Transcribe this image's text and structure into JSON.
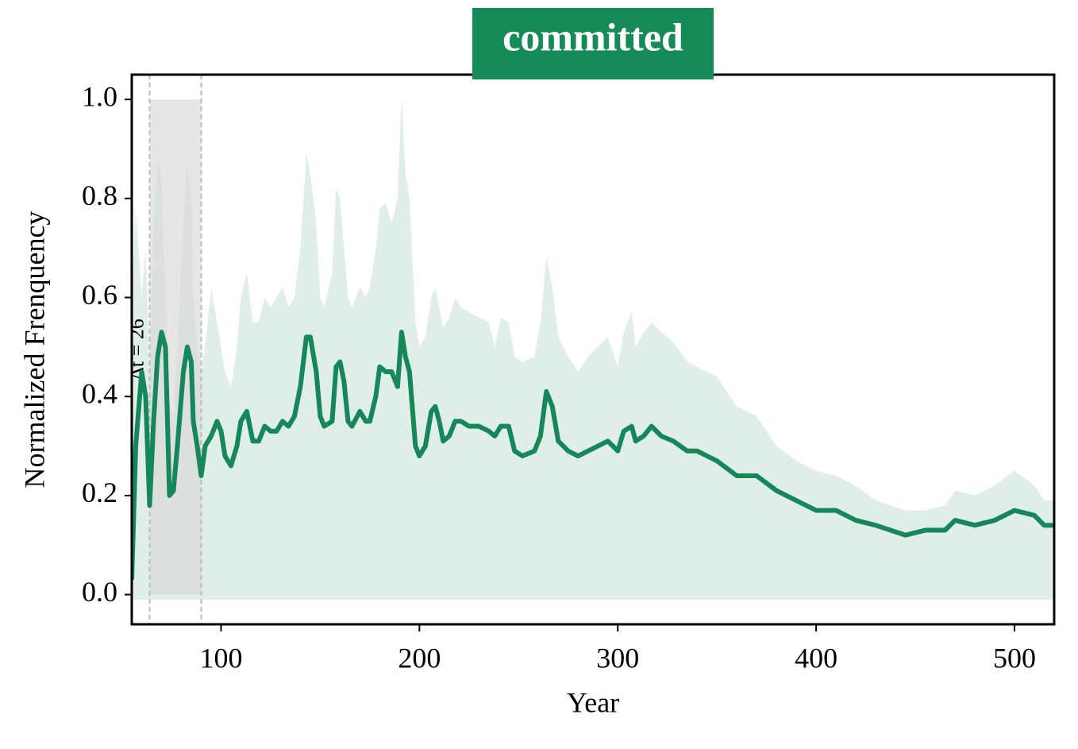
{
  "chart_data": {
    "type": "line",
    "title": "committed",
    "title_color": "#168a57",
    "xlabel": "Year",
    "ylabel": "Normalized Frenquency",
    "xlim": [
      55,
      520
    ],
    "ylim": [
      -0.06,
      1.05
    ],
    "xticks": [
      100,
      200,
      300,
      400,
      500
    ],
    "yticks": [
      {
        "value": 0,
        "label": "0.0"
      },
      {
        "value": 0.2,
        "label": "0.2"
      },
      {
        "value": 0.4,
        "label": "0.4"
      },
      {
        "value": 0.6,
        "label": "0.6"
      },
      {
        "value": 0.8,
        "label": "0.8"
      },
      {
        "value": 1,
        "label": "1.0"
      }
    ],
    "x": [
      55,
      57,
      60,
      62,
      64,
      66,
      68,
      70,
      72,
      74,
      76,
      78,
      81,
      83,
      85,
      86,
      88,
      90,
      92,
      95,
      98,
      100,
      102,
      105,
      108,
      110,
      113,
      116,
      119,
      122,
      125,
      128,
      131,
      134,
      137,
      140,
      143,
      145,
      148,
      150,
      152,
      156,
      158,
      160,
      162,
      164,
      166,
      170,
      173,
      175,
      178,
      180,
      183,
      186,
      189,
      191,
      193,
      195,
      198,
      200,
      203,
      206,
      208,
      210,
      212,
      215,
      218,
      221,
      225,
      230,
      235,
      238,
      241,
      245,
      248,
      252,
      258,
      261,
      264,
      267,
      270,
      275,
      280,
      285,
      290,
      295,
      300,
      303,
      307,
      309,
      313,
      317,
      322,
      328,
      335,
      340,
      350,
      360,
      370,
      380,
      390,
      400,
      410,
      420,
      430,
      445,
      455,
      465,
      470,
      480,
      490,
      500,
      510,
      515,
      520
    ],
    "series": [
      {
        "name": "committed",
        "color": "#15875a",
        "values": [
          0.03,
          0.3,
          0.45,
          0.4,
          0.18,
          0.35,
          0.48,
          0.53,
          0.5,
          0.2,
          0.21,
          0.3,
          0.45,
          0.5,
          0.47,
          0.35,
          0.3,
          0.24,
          0.3,
          0.32,
          0.35,
          0.33,
          0.28,
          0.26,
          0.3,
          0.35,
          0.37,
          0.31,
          0.31,
          0.34,
          0.33,
          0.33,
          0.35,
          0.34,
          0.36,
          0.42,
          0.52,
          0.52,
          0.45,
          0.36,
          0.34,
          0.35,
          0.46,
          0.47,
          0.43,
          0.35,
          0.34,
          0.37,
          0.35,
          0.35,
          0.4,
          0.46,
          0.45,
          0.45,
          0.42,
          0.53,
          0.48,
          0.45,
          0.3,
          0.28,
          0.3,
          0.37,
          0.38,
          0.35,
          0.31,
          0.32,
          0.35,
          0.35,
          0.34,
          0.34,
          0.33,
          0.32,
          0.34,
          0.34,
          0.29,
          0.28,
          0.29,
          0.32,
          0.41,
          0.38,
          0.31,
          0.29,
          0.28,
          0.29,
          0.3,
          0.31,
          0.29,
          0.33,
          0.34,
          0.31,
          0.32,
          0.34,
          0.32,
          0.31,
          0.29,
          0.29,
          0.27,
          0.24,
          0.24,
          0.21,
          0.19,
          0.17,
          0.17,
          0.15,
          0.14,
          0.12,
          0.13,
          0.13,
          0.15,
          0.14,
          0.15,
          0.17,
          0.16,
          0.14,
          0.14
        ]
      }
    ],
    "band": {
      "color": "#dfeee8",
      "lower": -0.01,
      "upper": [
        0.6,
        0.78,
        0.6,
        0.7,
        0.45,
        0.75,
        0.88,
        0.85,
        0.6,
        0.4,
        0.35,
        0.5,
        0.75,
        0.87,
        0.8,
        0.6,
        0.5,
        0.45,
        0.5,
        0.62,
        0.55,
        0.5,
        0.45,
        0.42,
        0.5,
        0.6,
        0.65,
        0.55,
        0.55,
        0.6,
        0.58,
        0.6,
        0.62,
        0.58,
        0.6,
        0.7,
        0.89,
        0.85,
        0.75,
        0.6,
        0.58,
        0.65,
        0.82,
        0.8,
        0.7,
        0.6,
        0.58,
        0.62,
        0.6,
        0.62,
        0.7,
        0.78,
        0.79,
        0.75,
        0.8,
        1.0,
        0.85,
        0.8,
        0.55,
        0.5,
        0.52,
        0.6,
        0.62,
        0.58,
        0.54,
        0.56,
        0.6,
        0.58,
        0.57,
        0.56,
        0.55,
        0.5,
        0.56,
        0.55,
        0.48,
        0.47,
        0.48,
        0.55,
        0.68,
        0.62,
        0.52,
        0.48,
        0.45,
        0.48,
        0.5,
        0.52,
        0.46,
        0.53,
        0.57,
        0.5,
        0.53,
        0.55,
        0.53,
        0.51,
        0.47,
        0.46,
        0.44,
        0.38,
        0.36,
        0.3,
        0.27,
        0.25,
        0.24,
        0.22,
        0.19,
        0.17,
        0.17,
        0.18,
        0.21,
        0.2,
        0.22,
        0.25,
        0.22,
        0.19,
        0.19
      ]
    },
    "highlight": {
      "x": [
        64,
        90
      ],
      "y": [
        0,
        1
      ],
      "label": "Δt = 26",
      "color": "#d8d8d8"
    }
  }
}
